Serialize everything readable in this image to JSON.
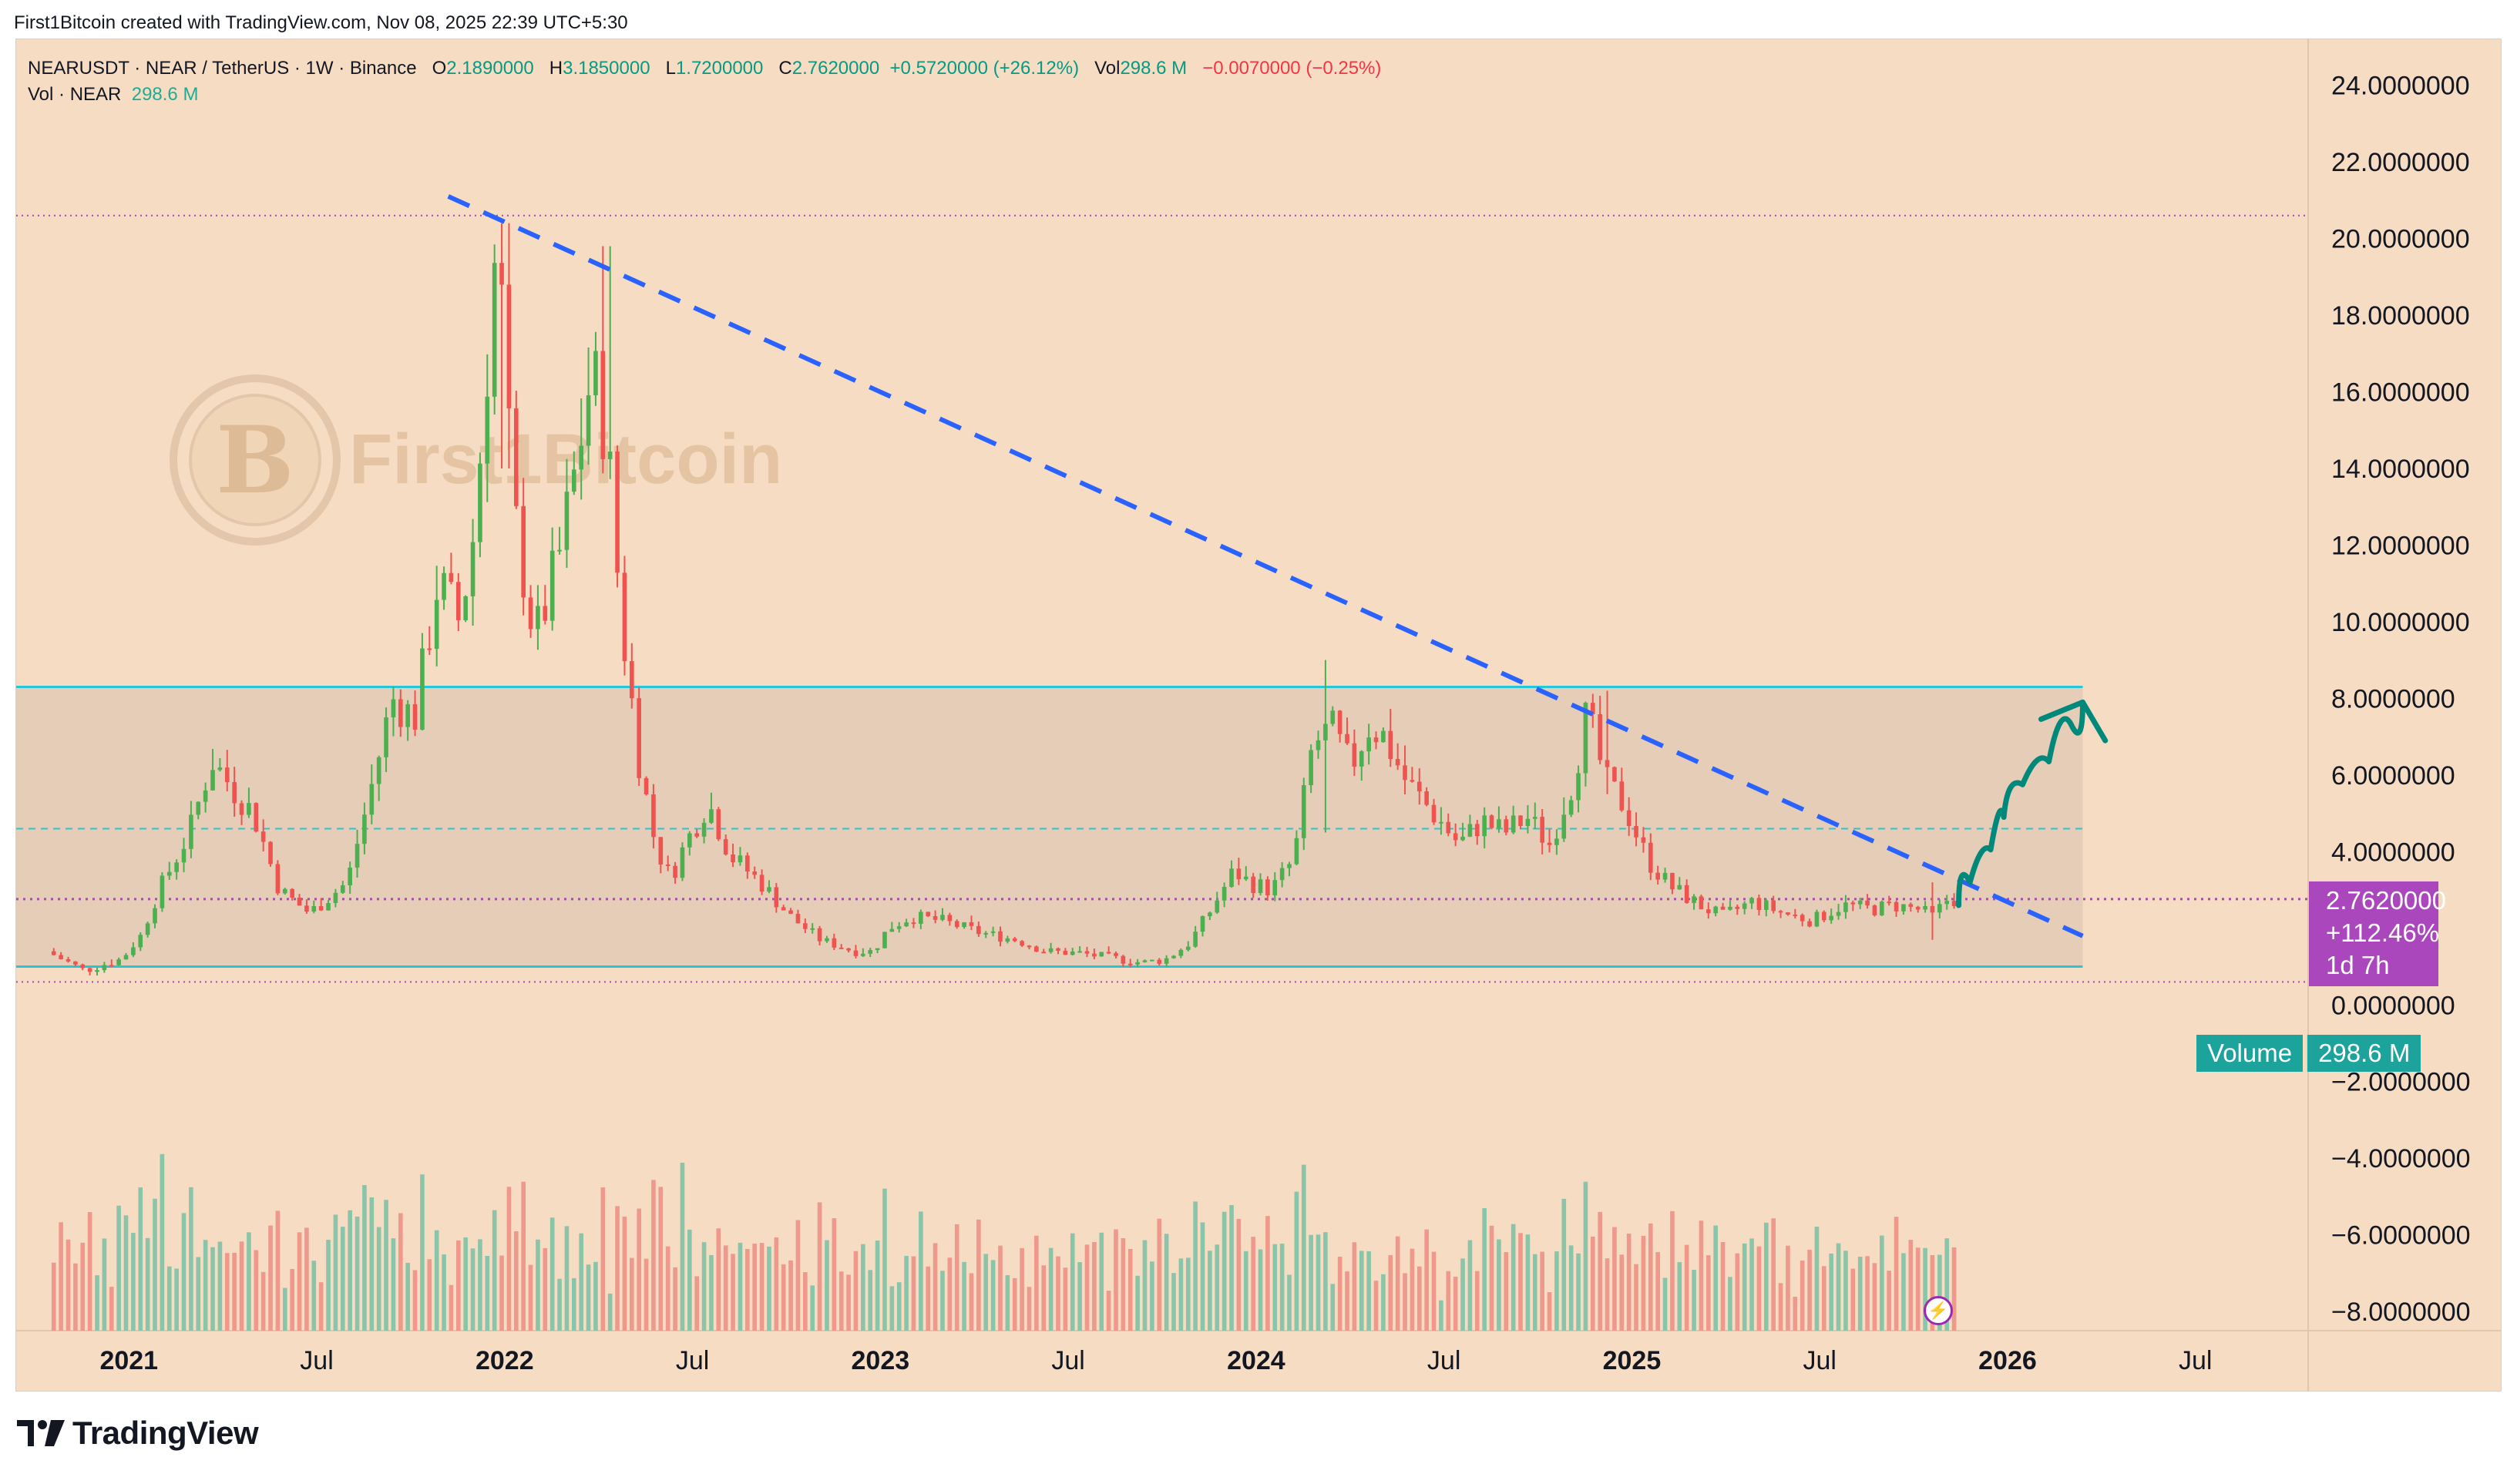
{
  "header": {
    "text": "First1Bitcoin created with TradingView.com, Nov 08, 2025 22:39 UTC+5:30"
  },
  "legend": {
    "symbol": "NEARUSDT · NEAR / TetherUS · 1W · Binance",
    "o_label": "O",
    "o_value": "2.1890000",
    "h_label": "H",
    "h_value": "3.1850000",
    "l_label": "L",
    "l_value": "1.7200000",
    "c_label": "C",
    "c_value": "2.7620000",
    "change": "+0.5720000 (+26.12%)",
    "vol_label": "Vol",
    "vol_value": "298.6 M",
    "vol_change": "−0.0070000 (−0.25%)",
    "row2_label": "Vol · NEAR",
    "row2_value": "298.6 M"
  },
  "watermark": {
    "text": "First1Bitcoin",
    "monogram": "B"
  },
  "price_badge": {
    "price": "2.7620000",
    "change": "+112.46%",
    "countdown": "1d 7h"
  },
  "volume_badge": {
    "label": "Volume",
    "value": "298.6 M"
  },
  "branding": {
    "name": "TradingView"
  },
  "colors": {
    "background": "#f6dcc3",
    "up": "#4caf50",
    "down": "#ef5350",
    "trendline": "#2962ff",
    "range": "#26c6da",
    "arrow": "#00897b",
    "level": "#ab47bc",
    "badge": "#ab47bc",
    "volume_badge": "#1ba39c"
  },
  "chart_data": {
    "type": "candlestick",
    "timeframe": "1W",
    "y_range": [
      -8.5,
      25.2
    ],
    "x_range": [
      2020.7,
      2026.8
    ],
    "y_ticks": [
      "24.0000000",
      "22.0000000",
      "20.0000000",
      "18.0000000",
      "16.0000000",
      "14.0000000",
      "12.0000000",
      "10.0000000",
      "8.0000000",
      "6.0000000",
      "4.0000000",
      "0.0000000",
      "−2.0000000",
      "−4.0000000",
      "−6.0000000",
      "−8.0000000"
    ],
    "y_tick_values": [
      24,
      22,
      20,
      18,
      16,
      14,
      12,
      10,
      8,
      6,
      4,
      0,
      -2,
      -4,
      -6,
      -8
    ],
    "x_ticks": [
      {
        "label": "2021",
        "t": 2021.0,
        "bold": true
      },
      {
        "label": "Jul",
        "t": 2021.5,
        "bold": false
      },
      {
        "label": "2022",
        "t": 2022.0,
        "bold": true
      },
      {
        "label": "Jul",
        "t": 2022.5,
        "bold": false
      },
      {
        "label": "2023",
        "t": 2023.0,
        "bold": true
      },
      {
        "label": "Jul",
        "t": 2023.5,
        "bold": false
      },
      {
        "label": "2024",
        "t": 2024.0,
        "bold": true
      },
      {
        "label": "Jul",
        "t": 2024.5,
        "bold": false
      },
      {
        "label": "2025",
        "t": 2025.0,
        "bold": true
      },
      {
        "label": "Jul",
        "t": 2025.5,
        "bold": false
      },
      {
        "label": "2026",
        "t": 2026.0,
        "bold": true
      },
      {
        "label": "Jul",
        "t": 2026.5,
        "bold": false
      }
    ],
    "price_path": [
      [
        2020.8,
        1.4
      ],
      [
        2020.9,
        0.9
      ],
      [
        2021.0,
        1.2
      ],
      [
        2021.05,
        1.8
      ],
      [
        2021.1,
        3.0
      ],
      [
        2021.18,
        4.5
      ],
      [
        2021.24,
        6.4
      ],
      [
        2021.3,
        5.6
      ],
      [
        2021.35,
        5.0
      ],
      [
        2021.42,
        3.0
      ],
      [
        2021.5,
        2.4
      ],
      [
        2021.6,
        3.2
      ],
      [
        2021.66,
        5.5
      ],
      [
        2021.72,
        8.0
      ],
      [
        2021.78,
        7.5
      ],
      [
        2021.84,
        11.0
      ],
      [
        2021.9,
        10.0
      ],
      [
        2021.94,
        12.5
      ],
      [
        2021.97,
        16.5
      ],
      [
        2022.0,
        20.2
      ],
      [
        2022.04,
        13.0
      ],
      [
        2022.1,
        9.5
      ],
      [
        2022.16,
        11.5
      ],
      [
        2022.2,
        13.5
      ],
      [
        2022.25,
        16.5
      ],
      [
        2022.29,
        15.0
      ],
      [
        2022.33,
        10.0
      ],
      [
        2022.38,
        6.2
      ],
      [
        2022.42,
        4.2
      ],
      [
        2022.46,
        3.3
      ],
      [
        2022.5,
        4.2
      ],
      [
        2022.56,
        5.3
      ],
      [
        2022.62,
        3.9
      ],
      [
        2022.7,
        3.2
      ],
      [
        2022.78,
        2.3
      ],
      [
        2022.86,
        1.7
      ],
      [
        2022.95,
        1.4
      ],
      [
        2023.0,
        1.4
      ],
      [
        2023.04,
        2.0
      ],
      [
        2023.1,
        2.3
      ],
      [
        2023.18,
        2.2
      ],
      [
        2023.28,
        1.9
      ],
      [
        2023.38,
        1.7
      ],
      [
        2023.46,
        1.4
      ],
      [
        2023.55,
        1.35
      ],
      [
        2023.65,
        1.2
      ],
      [
        2023.72,
        1.1
      ],
      [
        2023.78,
        1.2
      ],
      [
        2023.84,
        1.6
      ],
      [
        2023.9,
        2.5
      ],
      [
        2023.96,
        3.5
      ],
      [
        2024.0,
        3.2
      ],
      [
        2024.06,
        3.0
      ],
      [
        2024.12,
        3.8
      ],
      [
        2024.17,
        6.8
      ],
      [
        2024.22,
        7.2
      ],
      [
        2024.27,
        6.2
      ],
      [
        2024.32,
        7.3
      ],
      [
        2024.36,
        7.0
      ],
      [
        2024.42,
        5.8
      ],
      [
        2024.5,
        4.9
      ],
      [
        2024.56,
        4.2
      ],
      [
        2024.62,
        4.8
      ],
      [
        2024.68,
        4.5
      ],
      [
        2024.74,
        4.9
      ],
      [
        2024.8,
        4.2
      ],
      [
        2024.86,
        5.8
      ],
      [
        2024.9,
        7.6
      ],
      [
        2024.95,
        5.8
      ],
      [
        2025.0,
        5.2
      ],
      [
        2025.06,
        3.8
      ],
      [
        2025.12,
        3.1
      ],
      [
        2025.2,
        2.6
      ],
      [
        2025.26,
        2.3
      ],
      [
        2025.34,
        2.7
      ],
      [
        2025.42,
        2.4
      ],
      [
        2025.5,
        2.2
      ],
      [
        2025.58,
        2.6
      ],
      [
        2025.66,
        2.5
      ],
      [
        2025.72,
        2.6
      ],
      [
        2025.78,
        2.5
      ],
      [
        2025.82,
        2.3
      ],
      [
        2025.86,
        2.762
      ]
    ],
    "highlights": [
      [
        2022.0,
        20.4,
        14.0
      ],
      [
        2022.27,
        19.8,
        15.5
      ],
      [
        2024.18,
        9.0,
        4.5
      ],
      [
        2024.93,
        8.2,
        5.5
      ],
      [
        2025.8,
        3.2,
        1.7
      ]
    ],
    "annotations": {
      "range_box": {
        "x1": 2020.7,
        "x2": 2026.2,
        "y_top": 8.3,
        "y_bottom": 1.0
      },
      "mid_line_y": 4.6,
      "resistance_dotted_y": 20.6,
      "support_dotted_y": 0.6,
      "current_price_y": 2.762,
      "trendline": {
        "from": [
          2021.85,
          21.1
        ],
        "to": [
          2026.2,
          1.8
        ]
      },
      "forecast_arrow": [
        [
          2025.87,
          2.6
        ],
        [
          2025.93,
          3.8
        ],
        [
          2025.98,
          4.3
        ],
        [
          2026.0,
          5.5
        ],
        [
          2026.08,
          6.0
        ],
        [
          2026.14,
          6.7
        ],
        [
          2026.2,
          7.9
        ]
      ],
      "forecast_arrow_tail": [
        2026.26,
        6.9
      ]
    }
  }
}
